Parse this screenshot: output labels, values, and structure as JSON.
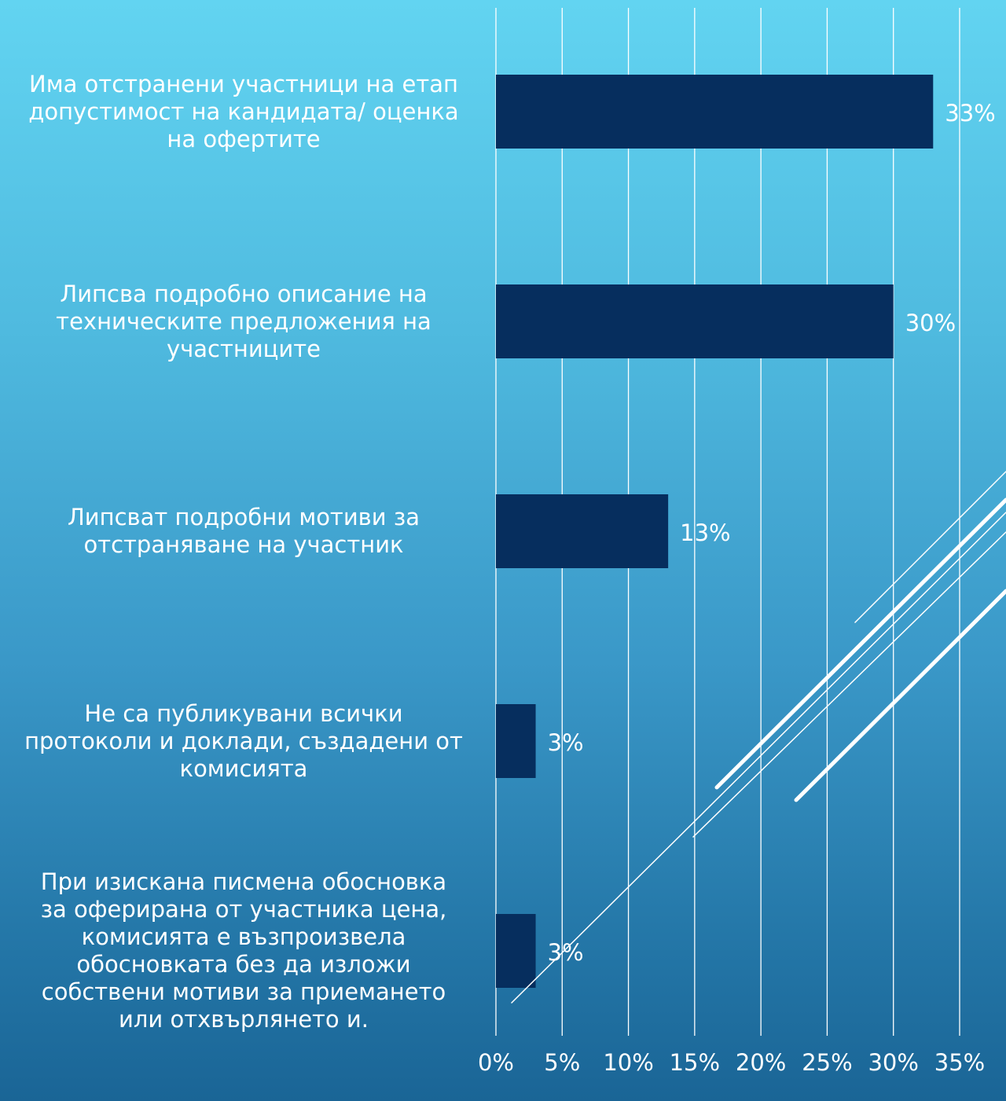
{
  "chart_data": {
    "type": "bar",
    "orientation": "horizontal",
    "categories": [
      "Има отстранени участници на етап допустимост на кандидата/ оценка на офертите",
      "Липсва подробно описание на техническите предложения на участниците",
      "Липсват подробни мотиви за отстраняване на участник",
      "Не са публикувани всички протоколи и доклади, създадени от комисията",
      "При  изискана писмена обосновка за оферирана от участника цена, комисията е възпроизвела обосновката без да изложи собствени мотиви за приемането или отхвърлянето и."
    ],
    "category_lines": [
      [
        "Има отстранени участници на етап",
        "допустимост на кандидата/ оценка",
        "на офертите"
      ],
      [
        "Липсва подробно описание на",
        "техническите предложения на",
        "участниците"
      ],
      [
        "Липсват подробни мотиви за",
        "отстраняване на участник"
      ],
      [
        "Не са публикувани всички",
        "протоколи и доклади, създадени от",
        "комисията"
      ],
      [
        "При  изискана писмена обосновка",
        "за оферирана от участника цена,",
        "комисията е възпроизвела",
        "обосновката без да изложи",
        "собствени мотиви за приемането",
        "или отхвърлянето и."
      ]
    ],
    "values": [
      33,
      30,
      13,
      3,
      3
    ],
    "data_labels": [
      "33%",
      "30%",
      "13%",
      "3%",
      "3%"
    ],
    "xlim": [
      0,
      35
    ],
    "xticks": [
      "0%",
      "5%",
      "10%",
      "15%",
      "20%",
      "25%",
      "30%",
      "35%"
    ],
    "grid": true,
    "bar_color": "#062e5e"
  }
}
